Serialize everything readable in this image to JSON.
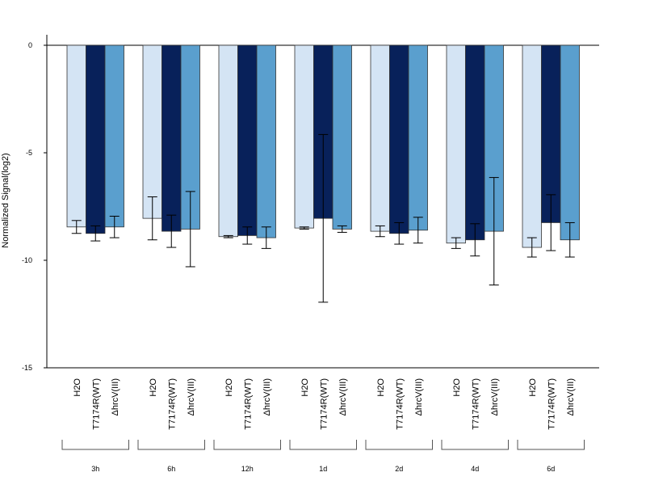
{
  "chart_data": {
    "type": "bar",
    "title": "",
    "xlabel": "",
    "ylabel": "Normalized Signal(log2)",
    "ylim": [
      -15,
      0.5
    ],
    "yticks": [
      0,
      -5,
      -10,
      -15
    ],
    "grid": false,
    "legend": "none",
    "series_labels": [
      "H2O",
      "T7174R(WT)",
      "ΔhrcV(III)"
    ],
    "groups": [
      {
        "label": "3h",
        "values": [
          -8.45,
          -8.75,
          -8.45
        ],
        "err": [
          0.3,
          0.35,
          0.5
        ]
      },
      {
        "label": "6h",
        "values": [
          -8.05,
          -8.65,
          -8.55
        ],
        "err": [
          1.0,
          0.75,
          1.75
        ]
      },
      {
        "label": "12h",
        "values": [
          -8.9,
          -8.85,
          -8.95
        ],
        "err": [
          0.05,
          0.4,
          0.5
        ]
      },
      {
        "label": "1d",
        "values": [
          -8.5,
          -8.05,
          -8.55
        ],
        "err": [
          0.05,
          3.9,
          0.15
        ]
      },
      {
        "label": "2d",
        "values": [
          -8.65,
          -8.75,
          -8.6
        ],
        "err": [
          0.25,
          0.5,
          0.6
        ]
      },
      {
        "label": "4d",
        "values": [
          -9.2,
          -9.05,
          -8.65
        ],
        "err": [
          0.25,
          0.75,
          2.5
        ]
      },
      {
        "label": "6d",
        "values": [
          -9.4,
          -8.25,
          -9.05
        ],
        "err": [
          0.45,
          1.3,
          0.8
        ]
      }
    ],
    "colors": [
      "#d4e4f4",
      "#08215a",
      "#5a9fce"
    ]
  }
}
